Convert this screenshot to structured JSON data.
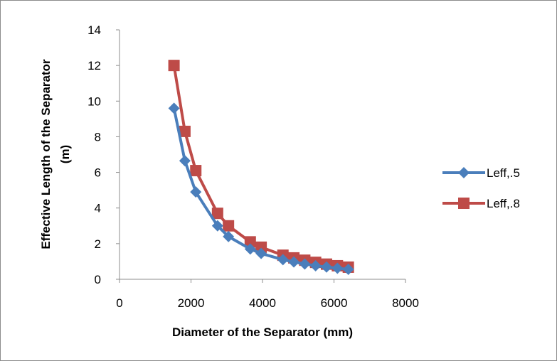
{
  "chart_data": {
    "type": "line",
    "title": "",
    "xlabel": "Diameter of the Separator (mm)",
    "ylabel_line1": "Effective Length of the Separator",
    "ylabel_line2": "(m)",
    "xlim": [
      0,
      8000
    ],
    "ylim": [
      0,
      14
    ],
    "xticks": [
      "0",
      "2000",
      "4000",
      "6000",
      "8000"
    ],
    "yticks": [
      "0",
      "2",
      "4",
      "6",
      "8",
      "10",
      "12",
      "14"
    ],
    "grid": false,
    "legend_position": "right",
    "series": [
      {
        "name": "Leff,.5",
        "color": "#4a7ebb",
        "marker": "diamond",
        "points": [
          {
            "x": 1524,
            "y": 9.6
          },
          {
            "x": 1829,
            "y": 6.65
          },
          {
            "x": 2134,
            "y": 4.9
          },
          {
            "x": 2743,
            "y": 3.0
          },
          {
            "x": 3048,
            "y": 2.4
          },
          {
            "x": 3658,
            "y": 1.7
          },
          {
            "x": 3962,
            "y": 1.45
          },
          {
            "x": 4572,
            "y": 1.1
          },
          {
            "x": 4877,
            "y": 0.97
          },
          {
            "x": 5182,
            "y": 0.86
          },
          {
            "x": 5486,
            "y": 0.76
          },
          {
            "x": 5791,
            "y": 0.69
          },
          {
            "x": 6096,
            "y": 0.62
          },
          {
            "x": 6401,
            "y": 0.56
          }
        ]
      },
      {
        "name": "Leff,.8",
        "color": "#be4b48",
        "marker": "square",
        "points": [
          {
            "x": 1524,
            "y": 12.0
          },
          {
            "x": 1829,
            "y": 8.3
          },
          {
            "x": 2134,
            "y": 6.1
          },
          {
            "x": 2743,
            "y": 3.7
          },
          {
            "x": 3048,
            "y": 3.0
          },
          {
            "x": 3658,
            "y": 2.1
          },
          {
            "x": 3962,
            "y": 1.8
          },
          {
            "x": 4572,
            "y": 1.35
          },
          {
            "x": 4877,
            "y": 1.2
          },
          {
            "x": 5182,
            "y": 1.07
          },
          {
            "x": 5486,
            "y": 0.95
          },
          {
            "x": 5791,
            "y": 0.85
          },
          {
            "x": 6096,
            "y": 0.76
          },
          {
            "x": 6401,
            "y": 0.68
          }
        ]
      }
    ]
  }
}
